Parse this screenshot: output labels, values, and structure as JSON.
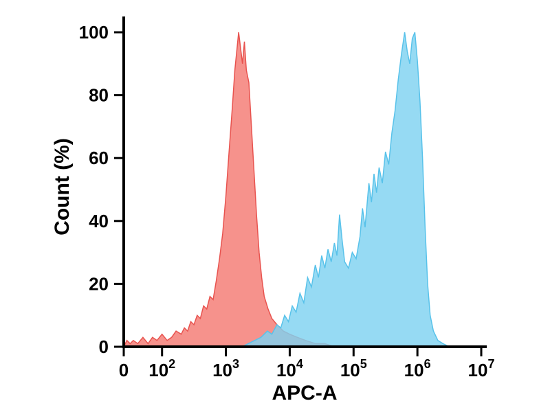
{
  "chart_data": {
    "type": "area",
    "title": "",
    "xlabel": "APC-A",
    "ylabel": "Count (%)",
    "x_scale": "biexponential-log",
    "x_axis_units_max": 5.6,
    "ylim": [
      0,
      100
    ],
    "grid": false,
    "legend": "none",
    "x_ticks": [
      {
        "text": "0",
        "sup": "",
        "u": 0.0
      },
      {
        "text": "10",
        "sup": "2",
        "u": 0.6
      },
      {
        "text": "10",
        "sup": "3",
        "u": 1.6
      },
      {
        "text": "10",
        "sup": "4",
        "u": 2.6
      },
      {
        "text": "10",
        "sup": "5",
        "u": 3.6
      },
      {
        "text": "10",
        "sup": "6",
        "u": 4.6
      },
      {
        "text": "10",
        "sup": "7",
        "u": 5.6
      }
    ],
    "y_ticks": [
      0,
      20,
      40,
      60,
      80,
      100
    ],
    "series": [
      {
        "name": "red-histogram",
        "fill": "#F4736B",
        "stroke": "#E8534F",
        "opacity": 0.78,
        "peak_x_approx": "2e3",
        "peak_y": 100,
        "points": [
          [
            0.0,
            0
          ],
          [
            0.05,
            2
          ],
          [
            0.1,
            1
          ],
          [
            0.15,
            2
          ],
          [
            0.22,
            1
          ],
          [
            0.3,
            3
          ],
          [
            0.38,
            1
          ],
          [
            0.45,
            3
          ],
          [
            0.52,
            2
          ],
          [
            0.6,
            4
          ],
          [
            0.68,
            2
          ],
          [
            0.75,
            3
          ],
          [
            0.82,
            5
          ],
          [
            0.9,
            4
          ],
          [
            0.95,
            6
          ],
          [
            1.0,
            5
          ],
          [
            1.05,
            8
          ],
          [
            1.1,
            7
          ],
          [
            1.15,
            10
          ],
          [
            1.2,
            9
          ],
          [
            1.25,
            13
          ],
          [
            1.3,
            12
          ],
          [
            1.35,
            16
          ],
          [
            1.4,
            15
          ],
          [
            1.45,
            21
          ],
          [
            1.5,
            28
          ],
          [
            1.55,
            36
          ],
          [
            1.6,
            48
          ],
          [
            1.65,
            62
          ],
          [
            1.7,
            76
          ],
          [
            1.74,
            88
          ],
          [
            1.78,
            96
          ],
          [
            1.8,
            100
          ],
          [
            1.83,
            95
          ],
          [
            1.86,
            90
          ],
          [
            1.89,
            97
          ],
          [
            1.92,
            88
          ],
          [
            1.96,
            84
          ],
          [
            2.0,
            70
          ],
          [
            2.04,
            56
          ],
          [
            2.08,
            42
          ],
          [
            2.12,
            30
          ],
          [
            2.16,
            22
          ],
          [
            2.2,
            16
          ],
          [
            2.26,
            12
          ],
          [
            2.32,
            9
          ],
          [
            2.4,
            7
          ],
          [
            2.5,
            5
          ],
          [
            2.6,
            4
          ],
          [
            2.72,
            3
          ],
          [
            2.85,
            2
          ],
          [
            3.0,
            1
          ],
          [
            3.15,
            1
          ],
          [
            3.3,
            0
          ]
        ]
      },
      {
        "name": "blue-histogram",
        "fill": "#7FD2F0",
        "stroke": "#58C2EA",
        "opacity": 0.82,
        "peak_x_approx": "8e5",
        "peak_y": 100,
        "points": [
          [
            1.85,
            0
          ],
          [
            1.95,
            1
          ],
          [
            2.05,
            2
          ],
          [
            2.15,
            3
          ],
          [
            2.25,
            5
          ],
          [
            2.32,
            4
          ],
          [
            2.4,
            7
          ],
          [
            2.46,
            6
          ],
          [
            2.52,
            10
          ],
          [
            2.58,
            8
          ],
          [
            2.64,
            13
          ],
          [
            2.7,
            11
          ],
          [
            2.76,
            17
          ],
          [
            2.82,
            14
          ],
          [
            2.88,
            22
          ],
          [
            2.94,
            19
          ],
          [
            3.0,
            26
          ],
          [
            3.05,
            22
          ],
          [
            3.1,
            29
          ],
          [
            3.15,
            25
          ],
          [
            3.2,
            31
          ],
          [
            3.25,
            27
          ],
          [
            3.3,
            33
          ],
          [
            3.34,
            29
          ],
          [
            3.38,
            42
          ],
          [
            3.42,
            34
          ],
          [
            3.46,
            27
          ],
          [
            3.52,
            25
          ],
          [
            3.58,
            30
          ],
          [
            3.64,
            28
          ],
          [
            3.7,
            35
          ],
          [
            3.74,
            44
          ],
          [
            3.78,
            38
          ],
          [
            3.84,
            52
          ],
          [
            3.88,
            46
          ],
          [
            3.92,
            55
          ],
          [
            3.96,
            49
          ],
          [
            4.0,
            57
          ],
          [
            4.05,
            52
          ],
          [
            4.1,
            62
          ],
          [
            4.15,
            58
          ],
          [
            4.2,
            68
          ],
          [
            4.25,
            75
          ],
          [
            4.3,
            85
          ],
          [
            4.35,
            93
          ],
          [
            4.4,
            100
          ],
          [
            4.44,
            94
          ],
          [
            4.48,
            90
          ],
          [
            4.52,
            98
          ],
          [
            4.56,
            100
          ],
          [
            4.6,
            91
          ],
          [
            4.64,
            78
          ],
          [
            4.68,
            60
          ],
          [
            4.72,
            38
          ],
          [
            4.76,
            20
          ],
          [
            4.8,
            10
          ],
          [
            4.85,
            5
          ],
          [
            4.92,
            2
          ],
          [
            5.0,
            1
          ],
          [
            5.1,
            0
          ]
        ]
      }
    ]
  }
}
